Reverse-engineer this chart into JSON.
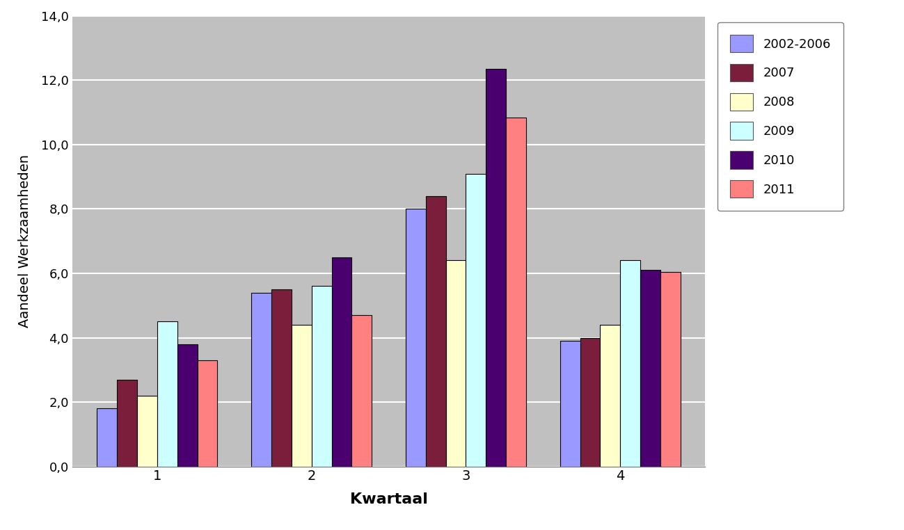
{
  "categories": [
    "1",
    "2",
    "3",
    "4"
  ],
  "series": {
    "2002-2006": [
      1.8,
      5.4,
      8.0,
      3.9
    ],
    "2007": [
      2.7,
      5.5,
      8.4,
      4.0
    ],
    "2008": [
      2.2,
      4.4,
      6.4,
      4.4
    ],
    "2009": [
      4.5,
      5.6,
      9.1,
      6.4
    ],
    "2010": [
      3.8,
      6.5,
      12.35,
      6.1
    ],
    "2011": [
      3.3,
      4.7,
      10.85,
      6.05
    ]
  },
  "colors": {
    "2002-2006": "#9999FF",
    "2007": "#7B1E3C",
    "2008": "#FFFFCC",
    "2009": "#CCFFFF",
    "2010": "#4B0070",
    "2011": "#FF8080"
  },
  "ylabel": "Aandeel Werkzaamheden",
  "xlabel": "Kwartaal",
  "ylim": [
    0,
    14
  ],
  "yticks": [
    0.0,
    2.0,
    4.0,
    6.0,
    8.0,
    10.0,
    12.0,
    14.0
  ],
  "ytick_labels": [
    "0,0",
    "2,0",
    "4,0",
    "6,0",
    "8,0",
    "10,0",
    "12,0",
    "14,0"
  ],
  "plot_bg_color": "#C0C0C0",
  "bar_edge_color": "#000000",
  "bar_width": 0.13,
  "legend_entries": [
    "2002-2006",
    "2007",
    "2008",
    "2009",
    "2010",
    "2011"
  ]
}
